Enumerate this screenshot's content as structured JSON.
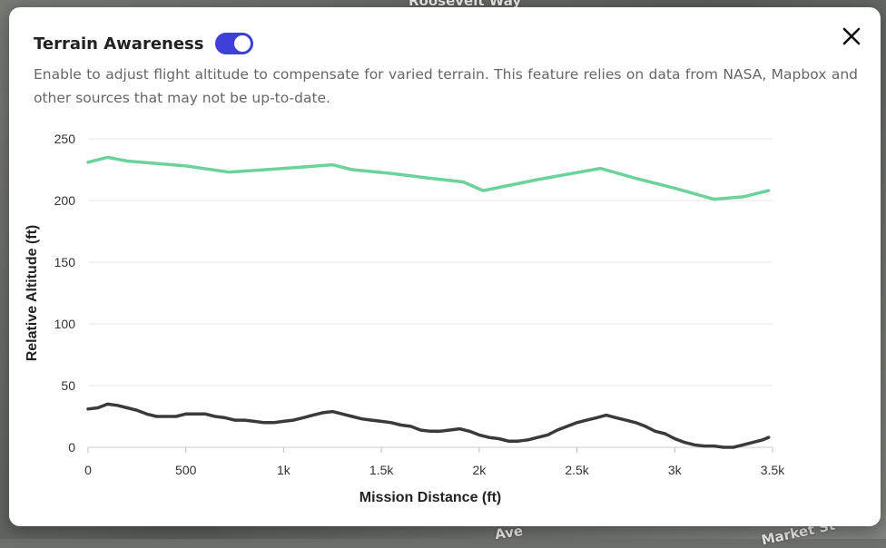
{
  "map": {
    "labels": [
      "Roosevelt Way",
      "Market St",
      "Ave"
    ]
  },
  "modal": {
    "title": "Terrain Awareness",
    "toggle_on": true,
    "description": "Enable to adjust flight altitude to compensate for varied terrain. This feature relies on data from NASA, Mapbox and other sources that may not be up-to-date."
  },
  "colors": {
    "accent": "#3d3fd6",
    "flight_line": "#6bd39a",
    "terrain_line": "#3a3a3a"
  },
  "chart_data": {
    "type": "line",
    "xlabel": "Mission Distance (ft)",
    "ylabel": "Relative Altitude (ft)",
    "xlim": [
      0,
      3500
    ],
    "ylim": [
      0,
      250
    ],
    "x_ticks": [
      0,
      500,
      1000,
      1500,
      2000,
      2500,
      3000,
      3500
    ],
    "x_tick_labels": [
      "0",
      "500",
      "1k",
      "1.5k",
      "2k",
      "2.5k",
      "3k",
      "3.5k"
    ],
    "y_ticks": [
      0,
      50,
      100,
      150,
      200,
      250
    ],
    "y_tick_labels": [
      "0",
      "50",
      "100",
      "150",
      "200",
      "250"
    ],
    "grid": true,
    "series": [
      {
        "name": "flight-altitude",
        "x": [
          0,
          100,
          200,
          500,
          720,
          1000,
          1250,
          1350,
          1550,
          1750,
          1920,
          2020,
          2300,
          2620,
          2800,
          3000,
          3200,
          3350,
          3480
        ],
        "y": [
          231,
          235,
          232,
          228,
          223,
          226,
          229,
          225,
          222,
          218,
          215,
          208,
          217,
          226,
          218,
          210,
          201,
          203,
          208
        ]
      },
      {
        "name": "terrain-altitude",
        "x": [
          0,
          50,
          100,
          150,
          200,
          250,
          300,
          350,
          400,
          450,
          500,
          550,
          600,
          650,
          700,
          750,
          800,
          850,
          900,
          950,
          1000,
          1050,
          1100,
          1150,
          1200,
          1250,
          1300,
          1350,
          1400,
          1450,
          1500,
          1550,
          1600,
          1650,
          1700,
          1750,
          1800,
          1850,
          1900,
          1950,
          2000,
          2050,
          2100,
          2150,
          2200,
          2250,
          2300,
          2350,
          2400,
          2450,
          2500,
          2550,
          2600,
          2650,
          2700,
          2750,
          2800,
          2850,
          2900,
          2950,
          3000,
          3050,
          3100,
          3150,
          3200,
          3250,
          3300,
          3350,
          3400,
          3450,
          3480
        ],
        "y": [
          31,
          32,
          35,
          34,
          32,
          30,
          27,
          25,
          25,
          25,
          27,
          27,
          27,
          25,
          24,
          22,
          22,
          21,
          20,
          20,
          21,
          22,
          24,
          26,
          28,
          29,
          27,
          25,
          23,
          22,
          21,
          20,
          18,
          17,
          14,
          13,
          13,
          14,
          15,
          13,
          10,
          8,
          7,
          5,
          5,
          6,
          8,
          10,
          14,
          17,
          20,
          22,
          24,
          26,
          24,
          22,
          20,
          17,
          13,
          11,
          7,
          4,
          2,
          1,
          1,
          0,
          0,
          2,
          4,
          6,
          8
        ]
      }
    ]
  }
}
